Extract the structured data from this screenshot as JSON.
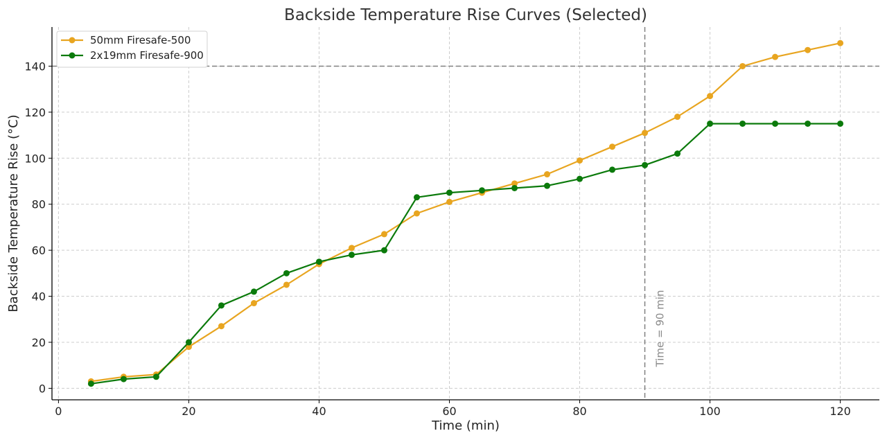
{
  "chart_data": {
    "type": "line",
    "title": "Backside Temperature Rise Curves (Selected)",
    "xlabel": "Time (min)",
    "ylabel": "Backside Temperature Rise (°C)",
    "xlim": [
      -1,
      126
    ],
    "ylim": [
      -5,
      157
    ],
    "xticks": [
      0,
      20,
      40,
      60,
      80,
      100,
      120
    ],
    "yticks": [
      0,
      20,
      40,
      60,
      80,
      100,
      120,
      140
    ],
    "grid": true,
    "legend_position": "top-left",
    "x": [
      5,
      10,
      15,
      20,
      25,
      30,
      35,
      40,
      45,
      50,
      55,
      60,
      65,
      70,
      75,
      80,
      85,
      90,
      95,
      100,
      105,
      110,
      115,
      120
    ],
    "series": [
      {
        "name": "50mm Firesafe-500",
        "color": "#E8A520",
        "values": [
          3,
          5,
          6,
          18,
          27,
          37,
          45,
          54,
          61,
          67,
          76,
          81,
          85,
          89,
          93,
          99,
          105,
          111,
          118,
          127,
          140,
          144,
          147,
          150
        ]
      },
      {
        "name": "2x19mm Firesafe-900",
        "color": "#0B7A0B",
        "values": [
          2,
          4,
          5,
          20,
          36,
          42,
          50,
          55,
          58,
          60,
          83,
          85,
          86,
          87,
          88,
          91,
          95,
          97,
          102,
          115,
          115,
          115,
          115,
          115
        ]
      }
    ],
    "reference_lines": [
      {
        "orientation": "horizontal",
        "value": 140,
        "color": "#808080"
      },
      {
        "orientation": "vertical",
        "value": 90,
        "color": "#808080",
        "label": "Time = 90 min"
      }
    ]
  }
}
